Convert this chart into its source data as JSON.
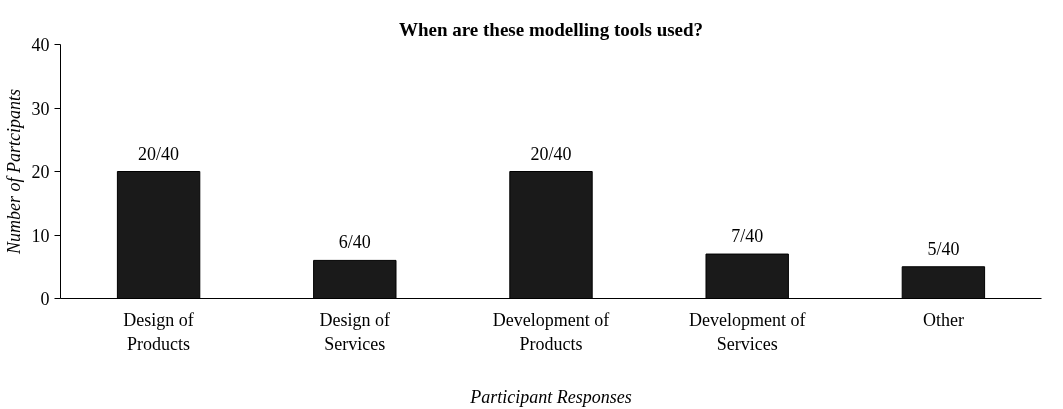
{
  "chart_data": {
    "type": "bar",
    "title": "When are these modelling tools used?",
    "xlabel": "Participant Responses",
    "ylabel": "Number of Partcipants",
    "categories": [
      "Design of\nProducts",
      "Design of\nServices",
      "Development of\nProducts",
      "Development of\nServices",
      "Other"
    ],
    "values": [
      20,
      6,
      20,
      7,
      5
    ],
    "color": "#1a1a1a",
    "value_labels": [
      "20/40",
      "6/40",
      "20/40",
      "7/40",
      "5/40"
    ],
    "ylim": [
      0,
      40
    ],
    "yticks": [
      0,
      10,
      20,
      30,
      40
    ],
    "grid": false
  }
}
